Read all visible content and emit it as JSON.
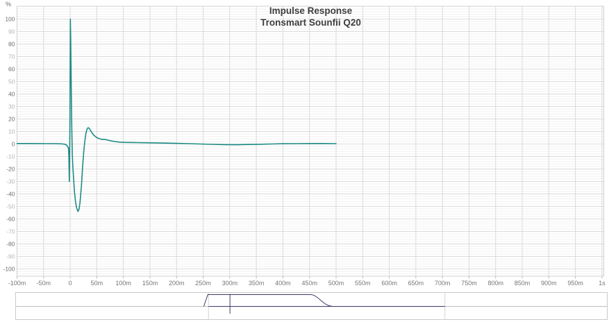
{
  "chart_data": {
    "type": "line",
    "title": "Impulse Response",
    "subtitle": "Tronsmart Sounfii Q20",
    "ylabel": "%",
    "grid": "on",
    "legend": "none",
    "x_axis": {
      "unit": "ms",
      "min": -100,
      "max": 1000,
      "tick_step": 50,
      "tick_labels": [
        "-100m",
        "-50m",
        "0",
        "50m",
        "100m",
        "150m",
        "200m",
        "250m",
        "300m",
        "350m",
        "400m",
        "450m",
        "500m",
        "550m",
        "600m",
        "650m",
        "700m",
        "750m",
        "800m",
        "850m",
        "900m",
        "950m",
        "1s"
      ]
    },
    "y_axis": {
      "unit": "%",
      "min": -106,
      "max": 110,
      "tick_step": 10,
      "minor_grid_step": 2,
      "tick_labels": [
        "100",
        "90",
        "80",
        "70",
        "60",
        "50",
        "40",
        "30",
        "20",
        "10",
        "0",
        "-10",
        "-20",
        "-30",
        "-40",
        "-50",
        "-60",
        "-70",
        "-80",
        "-90",
        "-100"
      ]
    },
    "series": [
      {
        "name": "Tronsmart Sounfii Q20 impulse",
        "color": "#1e8c84",
        "points_ms_pct": [
          [
            -100,
            0.4
          ],
          [
            -80,
            0.4
          ],
          [
            -60,
            0.35
          ],
          [
            -42,
            0.3
          ],
          [
            -28,
            0.2
          ],
          [
            -16,
            0.1
          ],
          [
            -9,
            -0.2
          ],
          [
            -6,
            -1.2
          ],
          [
            -4.5,
            -2.6
          ],
          [
            -3.2,
            -3
          ],
          [
            -2.4,
            -10
          ],
          [
            -1.7,
            -30
          ],
          [
            -1.1,
            -14
          ],
          [
            -0.5,
            18
          ],
          [
            0.3,
            100
          ],
          [
            1,
            85
          ],
          [
            2,
            45
          ],
          [
            3,
            12
          ],
          [
            4,
            -8
          ],
          [
            5,
            -18
          ],
          [
            6.5,
            -29
          ],
          [
            8,
            -38
          ],
          [
            10,
            -46
          ],
          [
            12,
            -51
          ],
          [
            14.5,
            -54
          ],
          [
            16.5,
            -52.5
          ],
          [
            18.5,
            -47
          ],
          [
            21,
            -34
          ],
          [
            23.5,
            -17
          ],
          [
            25.5,
            -6
          ],
          [
            27.5,
            2
          ],
          [
            29.5,
            8.5
          ],
          [
            31.5,
            11.8
          ],
          [
            33.5,
            13
          ],
          [
            35.5,
            12.7
          ],
          [
            37.5,
            11.4
          ],
          [
            40,
            9.6
          ],
          [
            43,
            7.8
          ],
          [
            46.5,
            6.3
          ],
          [
            50.5,
            5
          ],
          [
            55,
            4.2
          ],
          [
            59,
            3.7
          ],
          [
            63,
            3.8
          ],
          [
            67,
            3.5
          ],
          [
            72,
            3
          ],
          [
            78,
            2.4
          ],
          [
            85,
            1.9
          ],
          [
            93,
            1.5
          ],
          [
            102,
            1.3
          ],
          [
            113,
            1.2
          ],
          [
            126,
            1.1
          ],
          [
            142,
            1
          ],
          [
            160,
            0.9
          ],
          [
            180,
            0.7
          ],
          [
            200,
            0.5
          ],
          [
            222,
            0.3
          ],
          [
            245,
            0
          ],
          [
            268,
            -0.3
          ],
          [
            290,
            -0.5
          ],
          [
            312,
            -0.6
          ],
          [
            334,
            -0.4
          ],
          [
            356,
            -0.2
          ],
          [
            378,
            0
          ],
          [
            400,
            0.2
          ],
          [
            425,
            0.3
          ],
          [
            450,
            0.4
          ],
          [
            475,
            0.4
          ],
          [
            500,
            0.3
          ]
        ]
      }
    ],
    "overview": {
      "range_ms": [
        -997,
        1755
      ],
      "selection_ms": [
        -100,
        1000
      ],
      "marker_ms": 0,
      "envelope": {
        "rise_start_ms": -122,
        "top_start_ms": -103,
        "top_end_ms": 374,
        "base_end_ms": 484
      },
      "colors": {
        "envelope": "#3c3c68",
        "baseline": "#bdbdbd",
        "selection_edge": "#d2d2d2",
        "border": "#c9c9c9"
      }
    },
    "colors": {
      "curve": "#1e8c84",
      "grid_major": "#dadada",
      "grid_minor": "#f1f1f1",
      "plot_border": "#cfcfcf",
      "axis_tick": "#bdbdbd",
      "title": "#3e3e3e",
      "y_tick_major": "#6b6b6b",
      "y_tick_minor": "#b3b3b3",
      "x_tick": "#757575"
    }
  }
}
